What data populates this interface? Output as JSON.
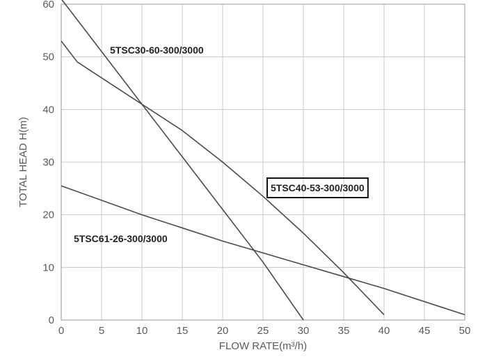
{
  "chart_data": {
    "type": "line",
    "xlabel": "FLOW RATE(m³/h)",
    "ylabel": "TOTAL HEAD H(m)",
    "xlim": [
      0,
      50
    ],
    "ylim": [
      0,
      60
    ],
    "x_ticks": [
      "0",
      "5",
      "10",
      "15",
      "20",
      "25",
      "30",
      "35",
      "40",
      "45",
      "50"
    ],
    "y_ticks": [
      "0",
      "10",
      "20",
      "30",
      "40",
      "50",
      "60"
    ],
    "grid": true,
    "series": [
      {
        "name": "5TSC30-60-300/3000",
        "boxed": false,
        "x": [
          0,
          5,
          10,
          15,
          20,
          25,
          30
        ],
        "y": [
          61,
          51,
          41,
          31,
          21,
          11,
          0
        ]
      },
      {
        "name": "5TSC40-53-300/3000",
        "boxed": true,
        "x": [
          0,
          2,
          5,
          10,
          15,
          20,
          25,
          30,
          35,
          40
        ],
        "y": [
          53,
          49,
          46,
          41,
          36,
          30,
          23.5,
          16.5,
          9,
          1
        ]
      },
      {
        "name": "5TSC61-26-300/3000",
        "boxed": false,
        "x": [
          0,
          10,
          20,
          30,
          40,
          50
        ],
        "y": [
          25.5,
          20,
          15,
          10.5,
          6,
          1
        ]
      }
    ]
  }
}
